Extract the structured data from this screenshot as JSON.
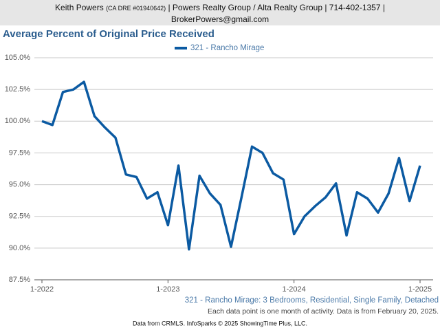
{
  "header": {
    "name": "Keith Powers",
    "license": "(CA DRE #01940642)",
    "details": "| Powers Realty Group / Alta Realty Group | 714-402-1357 |",
    "email": "BrokerPowers@gmail.com"
  },
  "chart_data": {
    "type": "line",
    "title": "Average Percent of Original Price Received",
    "categories": [
      "1-2022",
      null,
      null,
      null,
      null,
      null,
      null,
      null,
      null,
      null,
      null,
      null,
      "1-2023",
      null,
      null,
      null,
      null,
      null,
      null,
      null,
      null,
      null,
      null,
      null,
      "1-2024",
      null,
      null,
      null,
      null,
      null,
      null,
      null,
      null,
      null,
      null,
      null,
      "1-2025"
    ],
    "series": [
      {
        "name": "321 - Rancho Mirage",
        "color": "#0b5aa2",
        "values": [
          100.0,
          99.7,
          102.3,
          102.5,
          103.1,
          100.4,
          99.5,
          98.7,
          95.8,
          95.6,
          93.9,
          94.4,
          91.8,
          96.5,
          89.9,
          95.7,
          94.3,
          93.4,
          90.1,
          94.0,
          98.0,
          97.5,
          95.9,
          95.4,
          91.1,
          92.5,
          93.3,
          94.0,
          95.1,
          91.0,
          94.4,
          93.9,
          92.8,
          94.3,
          97.1,
          93.7,
          96.5
        ]
      }
    ],
    "ylim": [
      87.5,
      105
    ],
    "yticks": [
      {
        "value": 87.5,
        "label": "87.5%"
      },
      {
        "value": 90,
        "label": "90.0%"
      },
      {
        "value": 92.5,
        "label": "92.5%"
      },
      {
        "value": 95,
        "label": "95.0%"
      },
      {
        "value": 97.5,
        "label": "97.5%"
      },
      {
        "value": 100,
        "label": "100.0%"
      },
      {
        "value": 102.5,
        "label": "102.5%"
      },
      {
        "value": 105,
        "label": "105.0%"
      }
    ],
    "grid": true,
    "subtitle": "321 - Rancho Mirage: 3 Bedrooms, Residential, Single Family, Detached",
    "note": "Each data point is one month of activity. Data is from February 20, 2025.",
    "source": "Data from CRMLS. InfoSparks © 2025 ShowingTime Plus, LLC."
  }
}
